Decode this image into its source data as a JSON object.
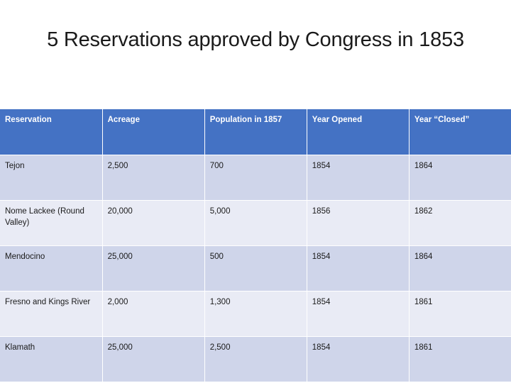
{
  "slide": {
    "title": "5 Reservations approved by Congress in 1853"
  },
  "table": {
    "colors": {
      "header_bg": "#4472c4",
      "row_band_dark": "#cfd5ea",
      "row_band_light": "#e9ebf5"
    },
    "headers": [
      "Reservation",
      "Acreage",
      "Population in 1857",
      "Year Opened",
      "Year “Closed”"
    ],
    "rows": [
      [
        "Tejon",
        "2,500",
        "700",
        "1854",
        "1864"
      ],
      [
        "Nome Lackee (Round Valley)",
        "20,000",
        "5,000",
        "1856",
        "1862"
      ],
      [
        "Mendocino",
        "25,000",
        "500",
        "1854",
        "1864"
      ],
      [
        "Fresno and Kings River",
        "2,000",
        "1,300",
        "1854",
        "1861"
      ],
      [
        "Klamath",
        "25,000",
        "2,500",
        "1854",
        "1861"
      ]
    ]
  }
}
